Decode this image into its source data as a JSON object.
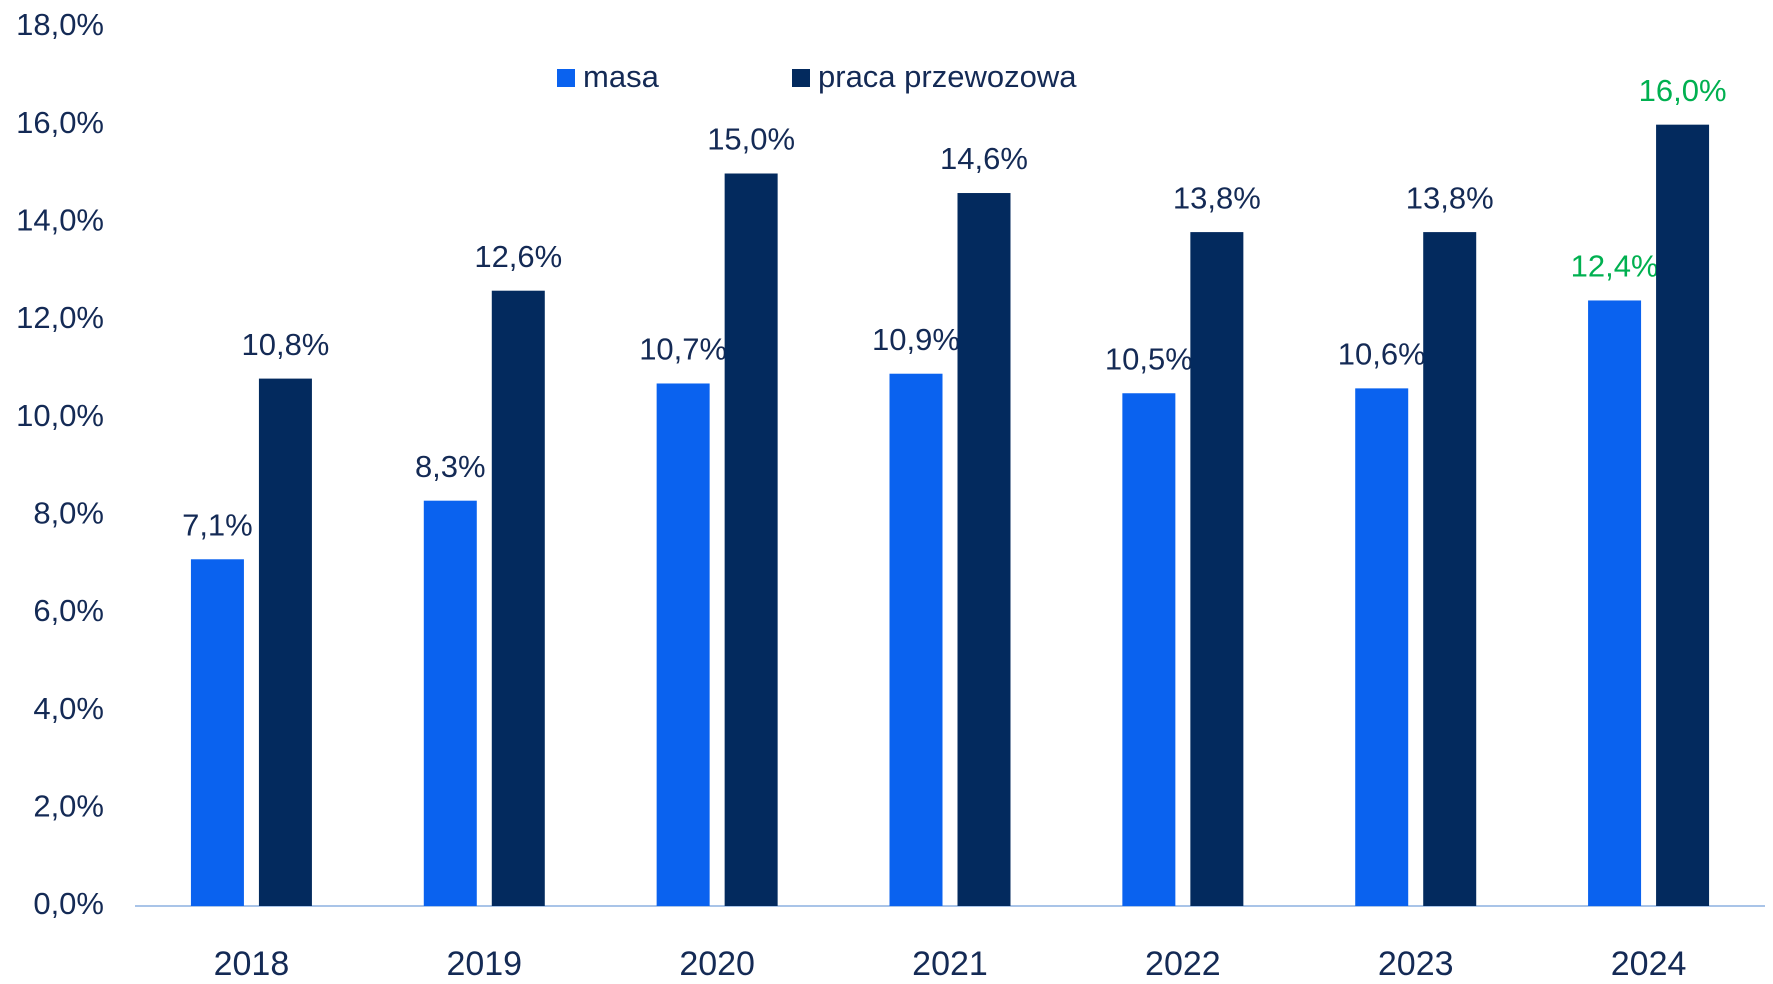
{
  "chart_data": {
    "type": "bar",
    "categories": [
      "2018",
      "2019",
      "2020",
      "2021",
      "2022",
      "2023",
      "2024"
    ],
    "series": [
      {
        "name": "masa",
        "color": "#0a62ef",
        "values": [
          7.1,
          8.3,
          10.7,
          10.9,
          10.5,
          10.6,
          12.4
        ],
        "value_labels": [
          "7,1%",
          "8,3%",
          "10,7%",
          "10,9%",
          "10,5%",
          "10,6%",
          "12,4%"
        ],
        "label_colors": [
          "#142a55",
          "#142a55",
          "#142a55",
          "#142a55",
          "#142a55",
          "#142a55",
          "#00b050"
        ]
      },
      {
        "name": "praca przewozowa",
        "color": "#032a5e",
        "values": [
          10.8,
          12.6,
          15.0,
          14.6,
          13.8,
          13.8,
          16.0
        ],
        "value_labels": [
          "10,8%",
          "12,6%",
          "15,0%",
          "14,6%",
          "13,8%",
          "13,8%",
          "16,0%"
        ],
        "label_colors": [
          "#142a55",
          "#142a55",
          "#142a55",
          "#142a55",
          "#142a55",
          "#142a55",
          "#00b050"
        ]
      }
    ],
    "ylim": [
      0,
      18
    ],
    "yticks": [
      {
        "value": 0,
        "label": "0,0%"
      },
      {
        "value": 2,
        "label": "2,0%"
      },
      {
        "value": 4,
        "label": "4,0%"
      },
      {
        "value": 6,
        "label": "6,0%"
      },
      {
        "value": 8,
        "label": "8,0%"
      },
      {
        "value": 10,
        "label": "10,0%"
      },
      {
        "value": 12,
        "label": "12,0%"
      },
      {
        "value": 14,
        "label": "14,0%"
      },
      {
        "value": 16,
        "label": "16,0%"
      },
      {
        "value": 18,
        "label": "18,0%"
      }
    ],
    "grid": false,
    "legend": "top"
  }
}
